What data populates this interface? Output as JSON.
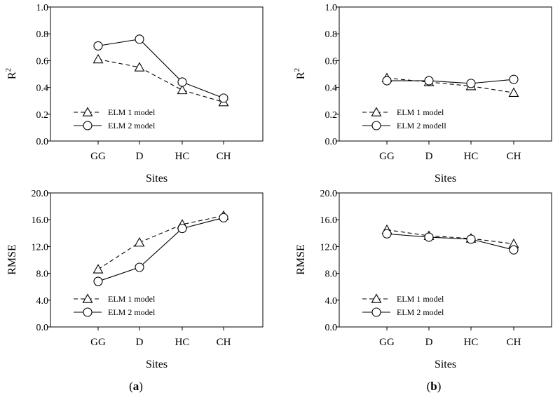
{
  "panel_labels": [
    {
      "open": "(",
      "letter": "a",
      "close": ")"
    },
    {
      "open": "(",
      "letter": "b",
      "close": ")"
    }
  ],
  "chart_data": [
    {
      "type": "line",
      "panel": "a",
      "metric": "r2",
      "categories": [
        "GG",
        "D",
        "HC",
        "CH"
      ],
      "series": [
        {
          "name": "ELM 1 model",
          "marker": "triangle",
          "dash": true,
          "values": [
            0.61,
            0.55,
            0.38,
            0.29
          ]
        },
        {
          "name": "ELM 2 model",
          "marker": "circle",
          "dash": false,
          "values": [
            0.71,
            0.76,
            0.44,
            0.32
          ]
        }
      ],
      "ylabel_base": "R",
      "ylabel_sup": "2",
      "xlabel": "Sites",
      "ylim": [
        0,
        1.0
      ],
      "yticks": [
        "0.0",
        "0.2",
        "0.4",
        "0.6",
        "0.8",
        "1.0"
      ],
      "legend_position": "bottom-left"
    },
    {
      "type": "line",
      "panel": "b",
      "metric": "r2",
      "categories": [
        "GG",
        "D",
        "HC",
        "CH"
      ],
      "series": [
        {
          "name": "ELM 1 model",
          "marker": "triangle",
          "dash": true,
          "values": [
            0.47,
            0.44,
            0.41,
            0.36
          ]
        },
        {
          "name": "ELM 2 modell",
          "marker": "circle",
          "dash": false,
          "values": [
            0.45,
            0.45,
            0.43,
            0.46
          ]
        }
      ],
      "ylabel_base": "R",
      "ylabel_sup": "2",
      "xlabel": "Sites",
      "ylim": [
        0,
        1.0
      ],
      "yticks": [
        "0.0",
        "0.2",
        "0.4",
        "0.6",
        "0.8",
        "1.0"
      ],
      "legend_position": "bottom-left"
    },
    {
      "type": "line",
      "panel": "a",
      "metric": "rmse",
      "categories": [
        "GG",
        "D",
        "HC",
        "CH"
      ],
      "series": [
        {
          "name": "ELM 1 model",
          "marker": "triangle",
          "dash": true,
          "values": [
            8.6,
            12.6,
            15.3,
            16.6
          ]
        },
        {
          "name": "ELM 2 model",
          "marker": "circle",
          "dash": false,
          "values": [
            6.8,
            8.9,
            14.7,
            16.3
          ]
        }
      ],
      "ylabel_base": "RMSE",
      "ylabel_sup": "",
      "xlabel": "Sites",
      "ylim": [
        0,
        20.0
      ],
      "yticks": [
        "0.0",
        "4.0",
        "8.0",
        "12.0",
        "16.0",
        "20.0"
      ],
      "legend_position": "bottom-left"
    },
    {
      "type": "line",
      "panel": "b",
      "metric": "rmse",
      "categories": [
        "GG",
        "D",
        "HC",
        "CH"
      ],
      "series": [
        {
          "name": "ELM 1 model",
          "marker": "triangle",
          "dash": true,
          "values": [
            14.5,
            13.6,
            13.2,
            12.4
          ]
        },
        {
          "name": "ELM 2 model",
          "marker": "circle",
          "dash": false,
          "values": [
            13.9,
            13.4,
            13.1,
            11.5
          ]
        }
      ],
      "ylabel_base": "RMSE",
      "ylabel_sup": "",
      "xlabel": "Sites",
      "ylim": [
        0,
        20.0
      ],
      "yticks": [
        "0.0",
        "4.0",
        "8.0",
        "12.0",
        "16.0",
        "20.0"
      ],
      "legend_position": "bottom-left"
    }
  ]
}
